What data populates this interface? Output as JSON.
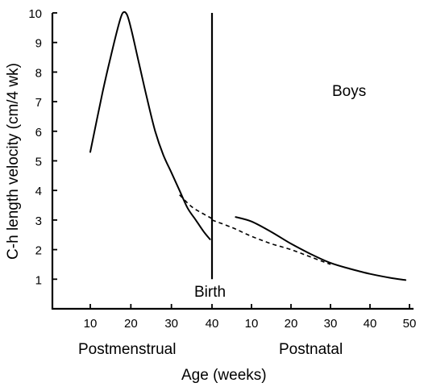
{
  "chart_data": {
    "type": "line",
    "title": "",
    "ylabel": "C-h length velocity (cm/4 wk)",
    "xlabel": "Age (weeks)",
    "ylim": [
      0,
      10
    ],
    "yticks": [
      "1",
      "2",
      "3",
      "4",
      "5",
      "6",
      "7",
      "8",
      "9",
      "10"
    ],
    "x_segments": [
      {
        "name": "Postmenstrual",
        "ticks": [
          "10",
          "20",
          "30",
          "40"
        ],
        "xlim": [
          0,
          40
        ]
      },
      {
        "name": "Postnatal",
        "ticks": [
          "10",
          "20",
          "30",
          "40",
          "50"
        ],
        "xlim": [
          0,
          50
        ]
      }
    ],
    "annotations": {
      "group": "Boys",
      "event": "Birth"
    },
    "birth_marker": {
      "postmenstrual_week": 40,
      "ymin": 1,
      "ymax": 10
    },
    "series": [
      {
        "style": "solid",
        "segment": "Postmenstrual",
        "x": [
          10,
          13,
          15,
          17,
          18,
          19,
          20,
          22,
          24,
          26,
          28,
          30,
          32,
          34,
          36,
          38,
          39.5
        ],
        "y": [
          5.3,
          7.3,
          8.5,
          9.6,
          10.0,
          9.95,
          9.5,
          8.3,
          7.1,
          6.0,
          5.2,
          4.6,
          4.0,
          3.4,
          3.0,
          2.6,
          2.35
        ]
      },
      {
        "style": "dashed",
        "segment": "Postmenstrual",
        "x": [
          32,
          35,
          38,
          40
        ],
        "y": [
          3.85,
          3.45,
          3.2,
          3.05
        ]
      },
      {
        "style": "dashed",
        "segment": "Postnatal",
        "x": [
          0,
          5,
          10,
          15,
          20,
          25,
          30
        ],
        "y": [
          3.0,
          2.75,
          2.45,
          2.2,
          2.0,
          1.75,
          1.5
        ]
      },
      {
        "style": "solid",
        "segment": "Postnatal",
        "x": [
          6,
          10,
          15,
          20,
          25,
          30,
          35,
          40,
          45,
          49
        ],
        "y": [
          3.1,
          2.95,
          2.6,
          2.2,
          1.85,
          1.55,
          1.35,
          1.18,
          1.05,
          0.97
        ]
      }
    ]
  }
}
